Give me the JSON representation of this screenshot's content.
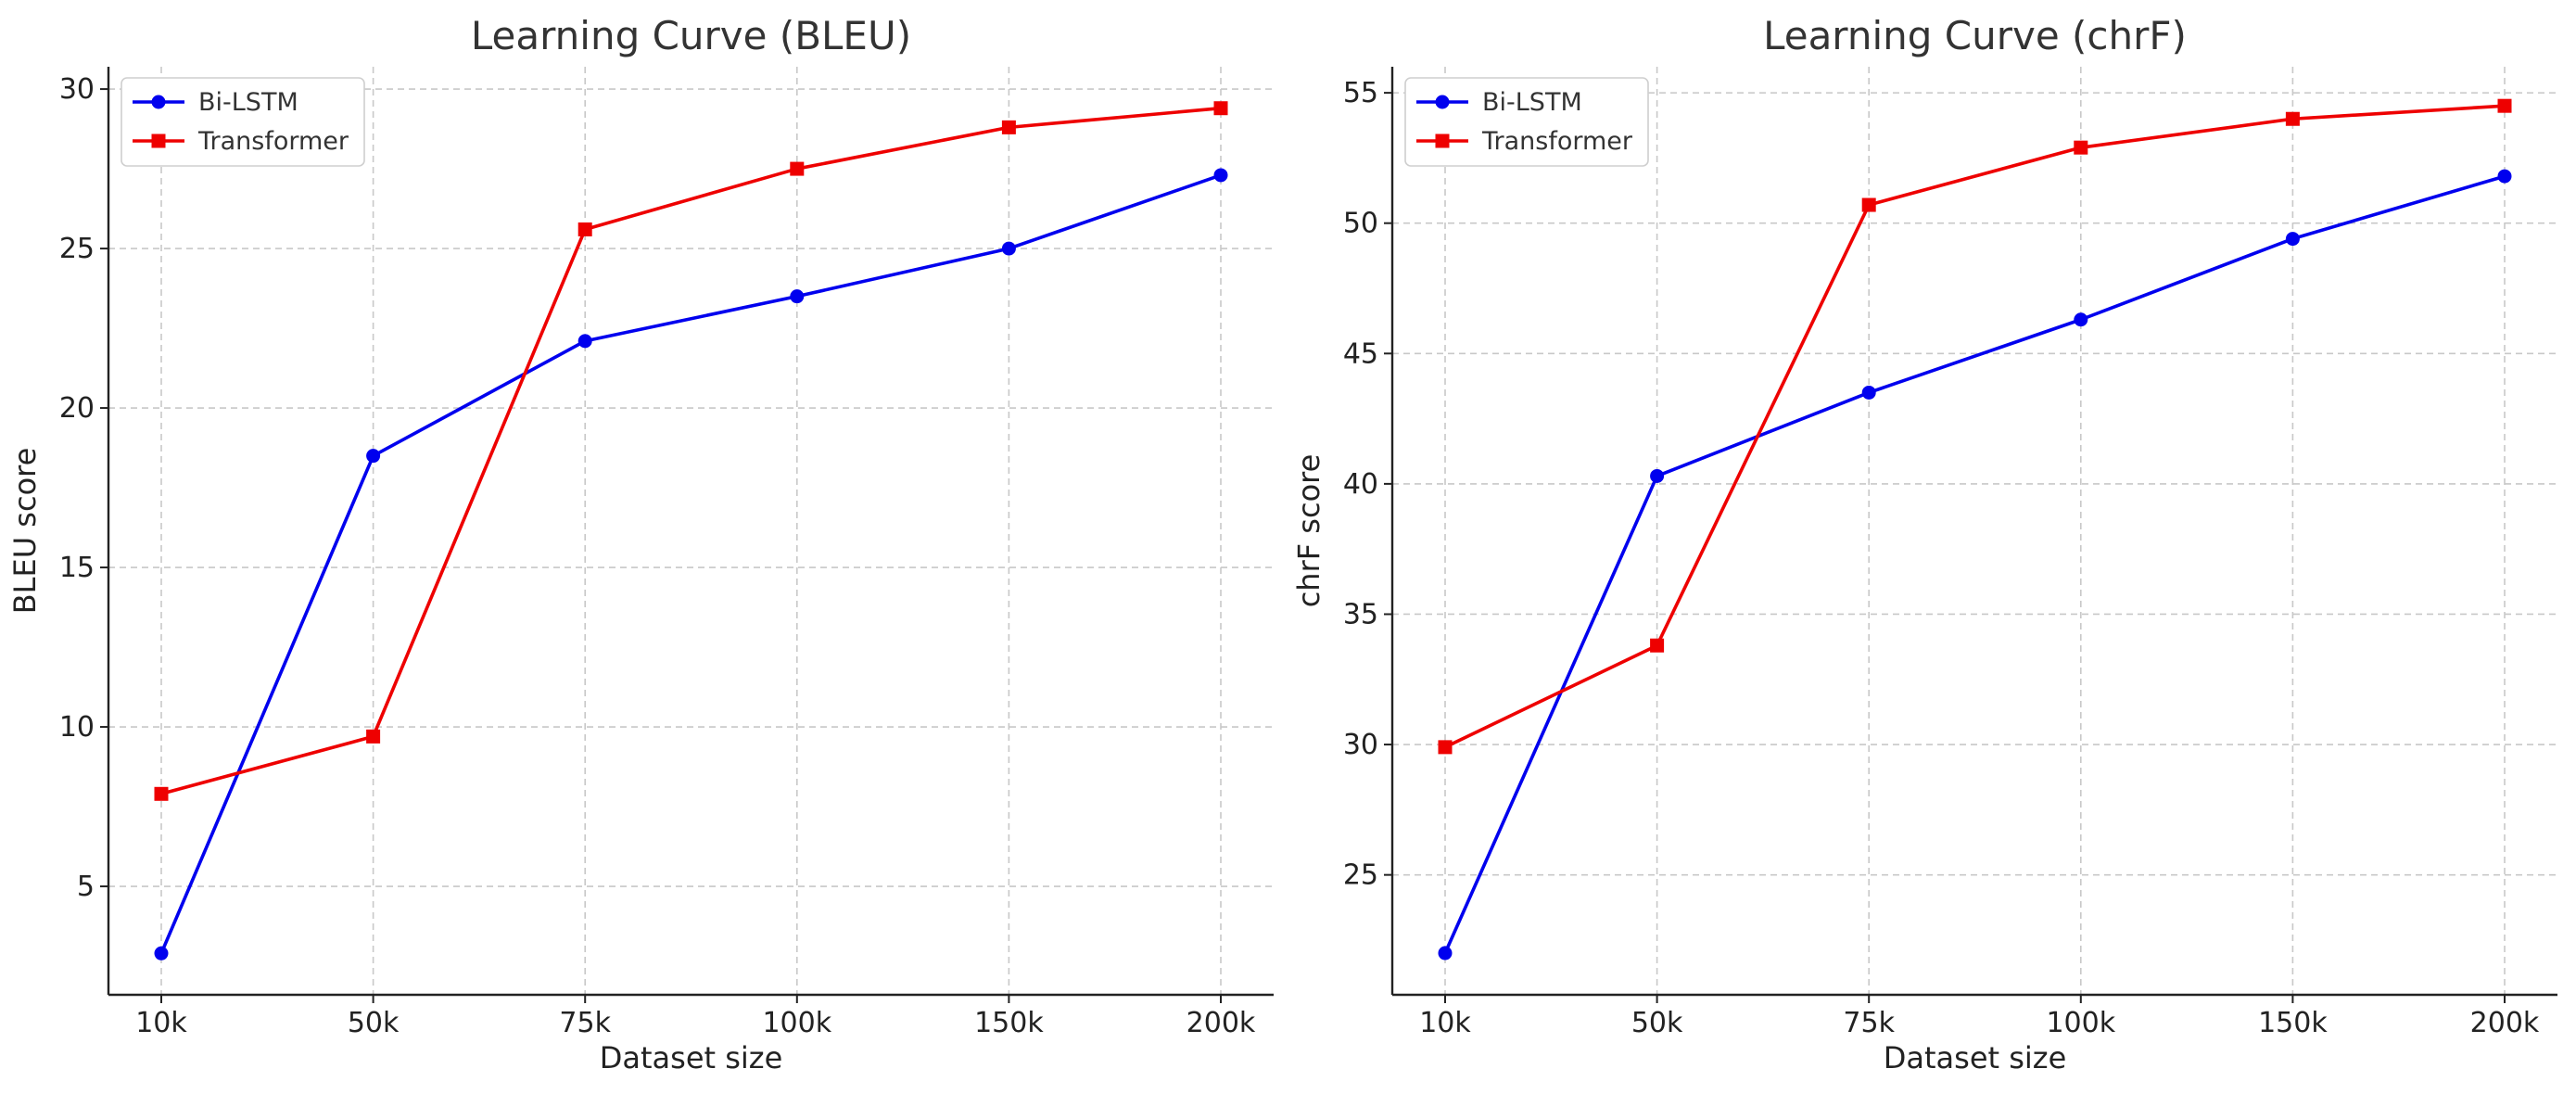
{
  "chart_data": [
    {
      "type": "line",
      "title": "Learning Curve (BLEU)",
      "xlabel": "Dataset size",
      "ylabel": "BLEU score",
      "categories": [
        "10k",
        "50k",
        "75k",
        "100k",
        "150k",
        "200k"
      ],
      "ylim": [
        1.6,
        30.7
      ],
      "yticks": [
        5,
        10,
        15,
        20,
        25,
        30
      ],
      "grid": true,
      "legend_position": "top-left",
      "series": [
        {
          "name": "Bi-LSTM",
          "color": "#0000ee",
          "marker": "circle",
          "values": [
            2.9,
            18.5,
            22.1,
            23.5,
            25.0,
            27.3
          ]
        },
        {
          "name": "Transformer",
          "color": "#ee0000",
          "marker": "square",
          "values": [
            7.9,
            9.7,
            25.6,
            27.5,
            28.8,
            29.4
          ]
        }
      ]
    },
    {
      "type": "line",
      "title": "Learning Curve (chrF)",
      "xlabel": "Dataset size",
      "ylabel": "chrF score",
      "categories": [
        "10k",
        "50k",
        "75k",
        "100k",
        "150k",
        "200k"
      ],
      "ylim": [
        20.4,
        56.0
      ],
      "yticks": [
        25,
        30,
        35,
        40,
        45,
        50,
        55
      ],
      "grid": true,
      "legend_position": "top-left",
      "series": [
        {
          "name": "Bi-LSTM",
          "color": "#0000ee",
          "marker": "circle",
          "values": [
            22.0,
            40.3,
            43.5,
            46.3,
            49.4,
            51.8
          ]
        },
        {
          "name": "Transformer",
          "color": "#ee0000",
          "marker": "square",
          "values": [
            29.9,
            33.8,
            50.7,
            52.9,
            54.0,
            54.5
          ]
        }
      ]
    }
  ]
}
